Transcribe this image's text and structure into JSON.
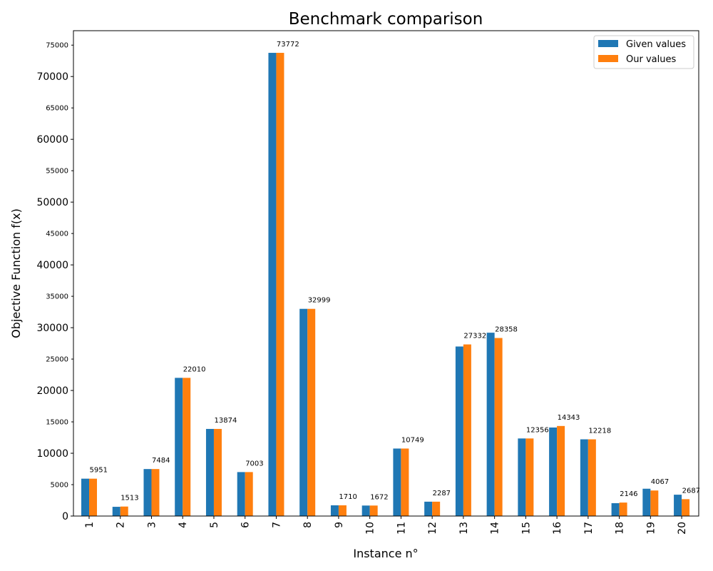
{
  "chart_data": {
    "type": "bar",
    "title": "Benchmark comparison",
    "xlabel": "Instance n°",
    "ylabel": "Objective Function f(x)",
    "categories": [
      "1",
      "2",
      "3",
      "4",
      "5",
      "6",
      "7",
      "8",
      "9",
      "10",
      "11",
      "12",
      "13",
      "14",
      "15",
      "16",
      "17",
      "18",
      "19",
      "20"
    ],
    "series": [
      {
        "name": "Given values",
        "color": "#1f77b4",
        "values": [
          5951,
          1470,
          7484,
          22010,
          13874,
          7003,
          73772,
          32999,
          1710,
          1672,
          10749,
          2287,
          27000,
          29200,
          12356,
          14100,
          12218,
          2050,
          4350,
          3400
        ]
      },
      {
        "name": "Our values",
        "color": "#ff7f0e",
        "values": [
          5951,
          1513,
          7484,
          22010,
          13874,
          7003,
          73772,
          32999,
          1710,
          1672,
          10749,
          2287,
          27332,
          28358,
          12356,
          14343,
          12218,
          2146,
          4067,
          2687
        ]
      }
    ],
    "data_labels": [
      5951,
      1513,
      7484,
      22010,
      13874,
      7003,
      73772,
      32999,
      1710,
      1672,
      10749,
      2287,
      27332,
      28358,
      12356,
      14343,
      12218,
      2146,
      4067,
      2687
    ],
    "ylim": [
      0,
      77300
    ],
    "major_ticks": [
      0,
      10000,
      20000,
      30000,
      40000,
      50000,
      60000,
      70000
    ],
    "minor_ticks": [
      5000,
      15000,
      25000,
      35000,
      45000,
      55000,
      65000,
      75000
    ],
    "grid": false,
    "legend_position": "top-right"
  }
}
